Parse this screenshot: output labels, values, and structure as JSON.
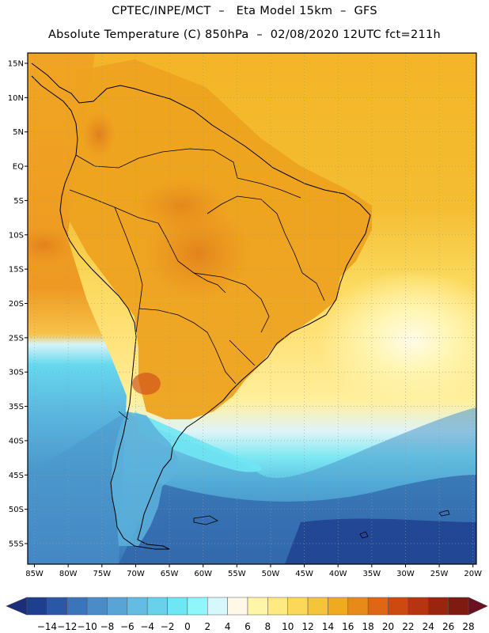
{
  "title_line1": "CPTEC/INPE/MCT  –   Eta Model 15km  –  GFS",
  "title_line2": "Absolute Temperature (C) 850hPa  –  02/08/2020 12UTC fct=211h",
  "map": {
    "lon_range": [
      -86,
      -19.5
    ],
    "lat_range": [
      -58,
      16.5
    ],
    "lon_ticks": [
      {
        "value": -85,
        "label": "85W"
      },
      {
        "value": -80,
        "label": "80W"
      },
      {
        "value": -75,
        "label": "75W"
      },
      {
        "value": -70,
        "label": "70W"
      },
      {
        "value": -65,
        "label": "65W"
      },
      {
        "value": -60,
        "label": "60W"
      },
      {
        "value": -55,
        "label": "55W"
      },
      {
        "value": -50,
        "label": "50W"
      },
      {
        "value": -45,
        "label": "45W"
      },
      {
        "value": -40,
        "label": "40W"
      },
      {
        "value": -35,
        "label": "35W"
      },
      {
        "value": -30,
        "label": "30W"
      },
      {
        "value": -25,
        "label": "25W"
      },
      {
        "value": -20,
        "label": "20W"
      }
    ],
    "lat_ticks": [
      {
        "value": 15,
        "label": "15N"
      },
      {
        "value": 10,
        "label": "10N"
      },
      {
        "value": 5,
        "label": "5N"
      },
      {
        "value": 0,
        "label": "EQ"
      },
      {
        "value": -5,
        "label": "5S"
      },
      {
        "value": -10,
        "label": "10S"
      },
      {
        "value": -15,
        "label": "15S"
      },
      {
        "value": -20,
        "label": "20S"
      },
      {
        "value": -25,
        "label": "25S"
      },
      {
        "value": -30,
        "label": "30S"
      },
      {
        "value": -35,
        "label": "35S"
      },
      {
        "value": -40,
        "label": "40S"
      },
      {
        "value": -45,
        "label": "45S"
      },
      {
        "value": -50,
        "label": "50S"
      },
      {
        "value": -55,
        "label": "55S"
      }
    ]
  },
  "colorbar": {
    "colors": [
      "#1e3f8f",
      "#2a58a6",
      "#3a74ba",
      "#4a8cc8",
      "#58a4d6",
      "#63bce3",
      "#68d2ea",
      "#6fe6f3",
      "#8ef7fb",
      "#d6f7fb",
      "#fff8e6",
      "#fff5a8",
      "#ffe980",
      "#fbd85a",
      "#f5c43a",
      "#f0aa20",
      "#e88a1a",
      "#df6614",
      "#cc4a10",
      "#b4350f",
      "#9a250f",
      "#7e1a10"
    ],
    "labels": [
      "-14",
      "-12",
      "-10",
      "-8",
      "-6",
      "-4",
      "-2",
      "0",
      "2",
      "4",
      "6",
      "8",
      "10",
      "12",
      "14",
      "16",
      "18",
      "20",
      "22",
      "24",
      "26",
      "28"
    ]
  }
}
